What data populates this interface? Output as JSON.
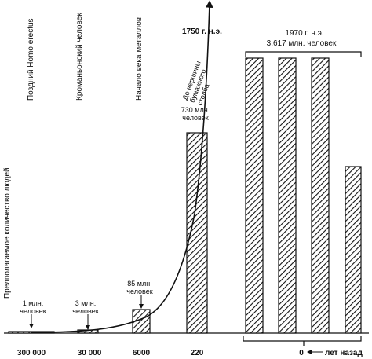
{
  "chart_data": {
    "type": "bar",
    "ylabel": "Предполагаемое количество людей",
    "era_labels": [
      {
        "key": "homo_erectus",
        "text": "Поздний Homo erectus"
      },
      {
        "key": "cro_magnon",
        "text": "Кроманьонский человек"
      },
      {
        "key": "metal_age",
        "text": "Начало века металлов"
      },
      {
        "key": "pyramid_top",
        "line1": "До вершины",
        "line2": "бумажного",
        "line3": "столба"
      }
    ],
    "x_ticks": [
      "300 000",
      "30 000",
      "6000",
      "220",
      "0"
    ],
    "x_suffix": "лет назад",
    "annotations": [
      {
        "key": "a1",
        "line1": "1 млн.",
        "line2": "человек"
      },
      {
        "key": "a2",
        "line1": "3 млн.",
        "line2": "человек"
      },
      {
        "key": "a3",
        "line1": "85 млн.",
        "line2": "человек"
      },
      {
        "key": "a4",
        "line1": "730 млн.",
        "line2": "человек"
      },
      {
        "key": "a5",
        "line1": "1750 г. н.э."
      },
      {
        "key": "a6",
        "line1": "1970 г. н.э.",
        "line2": "3,617 млн. человек"
      }
    ],
    "bars": [
      {
        "years_ago": 300000,
        "millions": 1
      },
      {
        "years_ago": 30000,
        "millions": 3
      },
      {
        "years_ago": 6000,
        "millions": 85
      },
      {
        "years_ago": 220,
        "millions": 730
      },
      {
        "years_ago": 0,
        "millions": 3617,
        "segment": 1
      },
      {
        "years_ago": 0,
        "millions": 3617,
        "segment": 2
      },
      {
        "years_ago": 0,
        "millions": 3617,
        "segment": 3
      },
      {
        "years_ago": 0,
        "millions": 3617,
        "segment": 4,
        "partial": true
      }
    ]
  }
}
